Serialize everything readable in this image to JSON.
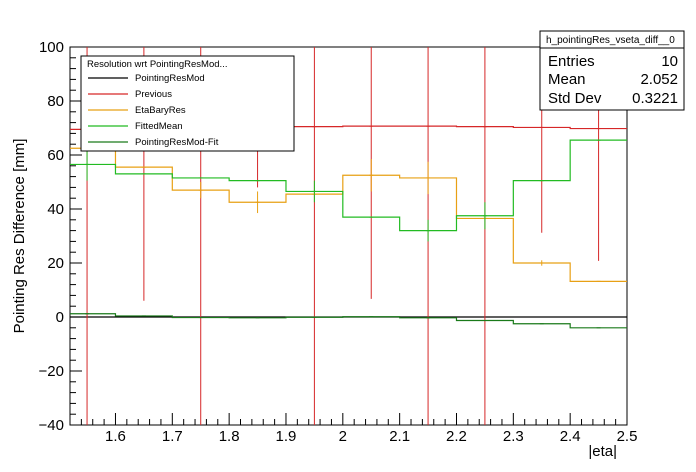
{
  "chart_data": {
    "type": "line",
    "xlabel": "|eta|",
    "ylabel": "Pointing Res Difference [mm]",
    "xlim": [
      1.52,
      2.5
    ],
    "ylim": [
      -40,
      100
    ],
    "x_ticks": [
      "1.6",
      "1.7",
      "1.8",
      "1.9",
      "2",
      "2.1",
      "2.2",
      "2.3",
      "2.4",
      "2.5"
    ],
    "y_ticks": [
      "−40",
      "−20",
      "0",
      "20",
      "40",
      "60",
      "80",
      "100"
    ],
    "bin_edges": [
      1.5,
      1.6,
      1.7,
      1.8,
      1.9,
      2.0,
      2.1,
      2.2,
      2.3,
      2.4,
      2.5
    ],
    "bin_centers": [
      1.55,
      1.65,
      1.75,
      1.85,
      1.95,
      2.05,
      2.15,
      2.25,
      2.35,
      2.45
    ],
    "reference_line_y": 0,
    "legend": {
      "title": "Resolution wrt PointingResMod...",
      "placement": "top-left",
      "entries": [
        "PointingResMod",
        "Previous",
        "EtaBaryRes",
        "FittedMean",
        "PointingResMod-Fit"
      ]
    },
    "stats_box": {
      "title": "h_pointingRes_vseta_diff__0",
      "rows": [
        {
          "name": "Entries",
          "value": "10"
        },
        {
          "name": "Mean",
          "value": "2.052"
        },
        {
          "name": "Std Dev",
          "value": "0.3221"
        }
      ]
    },
    "series": [
      {
        "name": "PointingResMod",
        "color": "#000000",
        "values": [
          0,
          0,
          0,
          0,
          0,
          0,
          0,
          0,
          0,
          0
        ],
        "errors": [
          0,
          0,
          0,
          0,
          0,
          0,
          0,
          0,
          0,
          0
        ]
      },
      {
        "name": "Previous",
        "color": "#d62728",
        "values": [
          69.5,
          70,
          70,
          70,
          70.5,
          70.7,
          70.7,
          70.5,
          70.2,
          69.8
        ],
        "errors": [
          200,
          64,
          200,
          22,
          200,
          64,
          200,
          200,
          39,
          49
        ]
      },
      {
        "name": "EtaBaryRes",
        "color": "#e8a014",
        "values": [
          62.5,
          55.5,
          47,
          42.5,
          45.5,
          52.5,
          51.5,
          36.5,
          20,
          13.2
        ],
        "errors": [
          0,
          0,
          3,
          4,
          0,
          6,
          6,
          0,
          1,
          0
        ]
      },
      {
        "name": "FittedMean",
        "color": "#22bb22",
        "values": [
          56.5,
          53,
          51.5,
          50.5,
          46.5,
          37,
          32,
          37.5,
          50.5,
          65.5
        ],
        "errors": [
          6,
          0,
          0,
          0,
          4,
          0,
          4,
          5,
          0,
          0
        ]
      },
      {
        "name": "PointingResMod-Fit",
        "color": "#1a7a1a",
        "values": [
          1.2,
          0.4,
          -0.2,
          -0.3,
          -0.1,
          0.1,
          -0.3,
          -1.3,
          -2.5,
          -4
        ],
        "errors": [
          0,
          0,
          0,
          0,
          0,
          0,
          0,
          0,
          0,
          0
        ]
      }
    ]
  }
}
